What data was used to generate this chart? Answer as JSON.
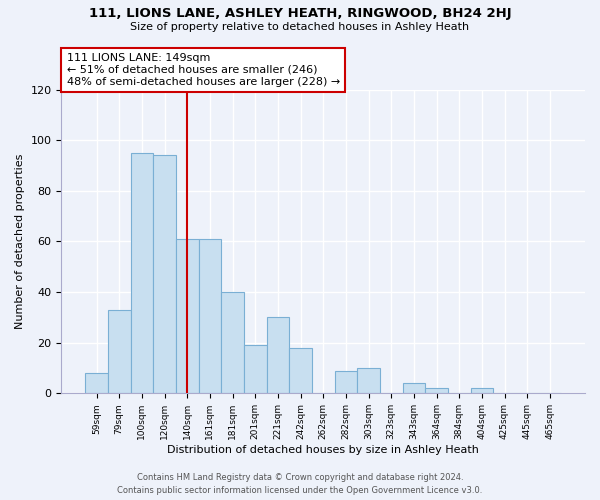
{
  "title": "111, LIONS LANE, ASHLEY HEATH, RINGWOOD, BH24 2HJ",
  "subtitle": "Size of property relative to detached houses in Ashley Heath",
  "xlabel": "Distribution of detached houses by size in Ashley Heath",
  "ylabel": "Number of detached properties",
  "bar_color": "#c8dff0",
  "bar_edge_color": "#7aafd4",
  "background_color": "#eef2fa",
  "grid_color": "#ffffff",
  "bin_labels": [
    "59sqm",
    "79sqm",
    "100sqm",
    "120sqm",
    "140sqm",
    "161sqm",
    "181sqm",
    "201sqm",
    "221sqm",
    "242sqm",
    "262sqm",
    "282sqm",
    "303sqm",
    "323sqm",
    "343sqm",
    "364sqm",
    "384sqm",
    "404sqm",
    "425sqm",
    "445sqm",
    "465sqm"
  ],
  "bar_heights": [
    8,
    33,
    95,
    94,
    61,
    61,
    40,
    19,
    30,
    18,
    0,
    9,
    10,
    0,
    4,
    2,
    0,
    2,
    0,
    0,
    0
  ],
  "ylim": [
    0,
    120
  ],
  "yticks": [
    0,
    20,
    40,
    60,
    80,
    100,
    120
  ],
  "annotation_box_text": "111 LIONS LANE: 149sqm\n← 51% of detached houses are smaller (246)\n48% of semi-detached houses are larger (228) →",
  "vline_color": "#cc0000",
  "vline_x_bin_index": 4.0,
  "footer_line1": "Contains HM Land Registry data © Crown copyright and database right 2024.",
  "footer_line2": "Contains public sector information licensed under the Open Government Licence v3.0."
}
